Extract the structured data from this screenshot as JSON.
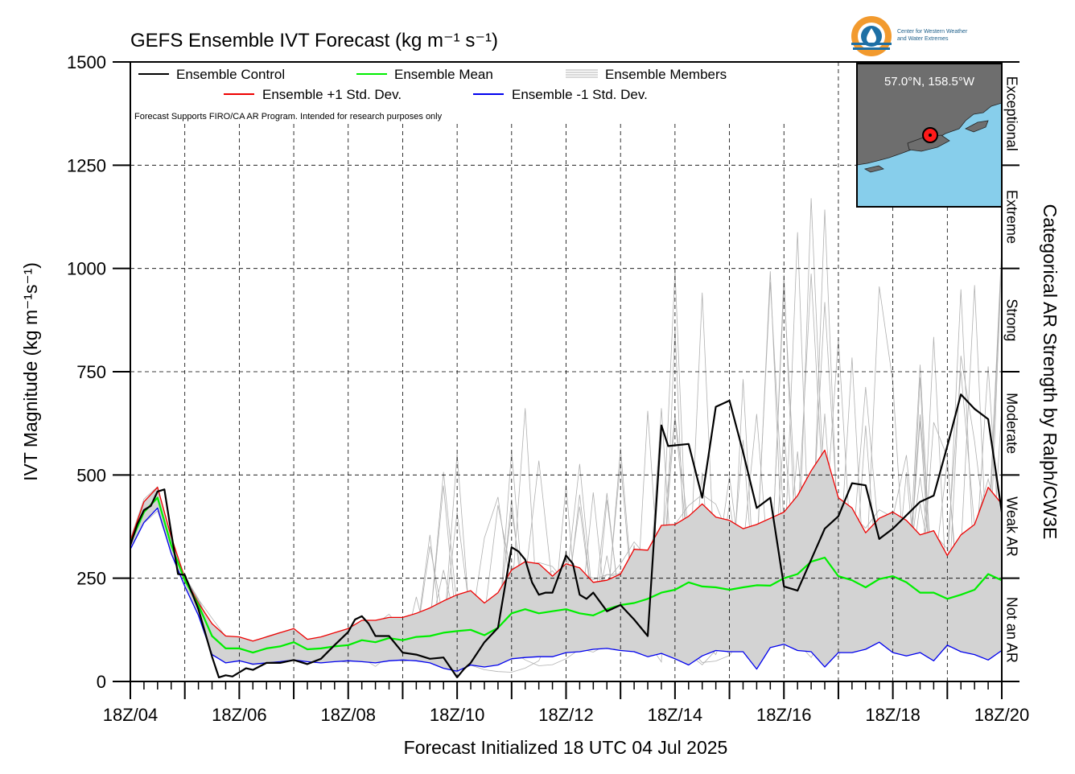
{
  "chart_data": {
    "type": "line",
    "title": "GEFS Ensemble IVT Forecast (kg m⁻¹ s⁻¹)",
    "xlabel": "Forecast Initialized 18 UTC 04 Jul 2025",
    "ylabel": "IVT Magnitude (kg m⁻¹s⁻¹)",
    "right_label": "Categorical AR Strength by Ralph/CW3E",
    "disclaimer": "Forecast Supports FIRO/CA AR Program. Intended for research purposes only",
    "location": "57.0°N, 158.5°W",
    "logo_text": [
      "Center for Western Weather",
      "and Water Extremes"
    ],
    "xlim": [
      0,
      16
    ],
    "ylim": [
      0,
      1500
    ],
    "grid": true,
    "x_unit": "days since 18Z/04 Jul 2025",
    "x_ticks": [
      {
        "x": 0,
        "label": "18Z/04"
      },
      {
        "x": 2,
        "label": "18Z/06"
      },
      {
        "x": 4,
        "label": "18Z/08"
      },
      {
        "x": 6,
        "label": "18Z/10"
      },
      {
        "x": 8,
        "label": "18Z/12"
      },
      {
        "x": 10,
        "label": "18Z/14"
      },
      {
        "x": 12,
        "label": "18Z/16"
      },
      {
        "x": 14,
        "label": "18Z/18"
      },
      {
        "x": 16,
        "label": "18Z/20"
      }
    ],
    "y_ticks": [
      0,
      250,
      500,
      750,
      1000,
      1250,
      1500
    ],
    "categories": [
      {
        "label": "Not an AR",
        "from": 0,
        "to": 250
      },
      {
        "label": "Weak AR",
        "from": 250,
        "to": 500
      },
      {
        "label": "Moderate",
        "from": 500,
        "to": 750
      },
      {
        "label": "Strong",
        "from": 750,
        "to": 1000
      },
      {
        "label": "Extreme",
        "from": 1000,
        "to": 1250
      },
      {
        "label": "Exceptional",
        "from": 1250,
        "to": 1500
      }
    ],
    "legend": [
      {
        "name": "Ensemble Control",
        "color": "#000000"
      },
      {
        "name": "Ensemble Mean",
        "color": "#00ee00"
      },
      {
        "name": "Ensemble Members",
        "color": "#b0b0b0"
      },
      {
        "name": "Ensemble +1 Std. Dev.",
        "color": "#ee0000"
      },
      {
        "name": "Ensemble -1 Std. Dev.",
        "color": "#0000ee"
      }
    ],
    "series": [
      {
        "name": "Ensemble Control",
        "color": "#000000",
        "points": [
          [
            0,
            330
          ],
          [
            0.125,
            380
          ],
          [
            0.25,
            415
          ],
          [
            0.375,
            425
          ],
          [
            0.5,
            460
          ],
          [
            0.625,
            465
          ],
          [
            0.75,
            360
          ],
          [
            0.875,
            260
          ],
          [
            1,
            258
          ],
          [
            1.25,
            175
          ],
          [
            1.5,
            60
          ],
          [
            1.625,
            10
          ],
          [
            1.75,
            15
          ],
          [
            1.875,
            12
          ],
          [
            2,
            22
          ],
          [
            2.125,
            32
          ],
          [
            2.25,
            28
          ],
          [
            2.5,
            45
          ],
          [
            2.75,
            45
          ],
          [
            3,
            52
          ],
          [
            3.25,
            42
          ],
          [
            3.5,
            55
          ],
          [
            3.75,
            88
          ],
          [
            4,
            120
          ],
          [
            4.125,
            150
          ],
          [
            4.25,
            158
          ],
          [
            4.375,
            140
          ],
          [
            4.5,
            110
          ],
          [
            4.75,
            110
          ],
          [
            5,
            70
          ],
          [
            5.25,
            65
          ],
          [
            5.5,
            55
          ],
          [
            5.75,
            58
          ],
          [
            6,
            10
          ],
          [
            6.125,
            30
          ],
          [
            6.25,
            45
          ],
          [
            6.5,
            95
          ],
          [
            6.75,
            130
          ],
          [
            7,
            325
          ],
          [
            7.125,
            315
          ],
          [
            7.25,
            295
          ],
          [
            7.375,
            240
          ],
          [
            7.5,
            210
          ],
          [
            7.625,
            215
          ],
          [
            7.75,
            215
          ],
          [
            8,
            305
          ],
          [
            8.125,
            285
          ],
          [
            8.25,
            210
          ],
          [
            8.375,
            200
          ],
          [
            8.5,
            215
          ],
          [
            8.75,
            170
          ],
          [
            9,
            185
          ],
          [
            9.25,
            150
          ],
          [
            9.5,
            110
          ],
          [
            9.75,
            620
          ],
          [
            9.875,
            570
          ],
          [
            10.25,
            575
          ],
          [
            10.5,
            445
          ],
          [
            10.75,
            665
          ],
          [
            11,
            680
          ],
          [
            11.25,
            555
          ],
          [
            11.5,
            420
          ],
          [
            11.75,
            445
          ],
          [
            12,
            230
          ],
          [
            12.25,
            220
          ],
          [
            12.75,
            370
          ],
          [
            13,
            400
          ],
          [
            13.25,
            480
          ],
          [
            13.5,
            475
          ],
          [
            13.75,
            345
          ],
          [
            14,
            370
          ],
          [
            14.5,
            435
          ],
          [
            14.75,
            450
          ],
          [
            15,
            570
          ],
          [
            15.25,
            695
          ],
          [
            15.5,
            660
          ],
          [
            15.75,
            635
          ],
          [
            16,
            410
          ]
        ]
      },
      {
        "name": "Ensemble Mean",
        "color": "#00ee00",
        "points": [
          [
            0,
            335
          ],
          [
            0.25,
            410
          ],
          [
            0.5,
            445
          ],
          [
            0.75,
            330
          ],
          [
            1,
            245
          ],
          [
            1.25,
            185
          ],
          [
            1.5,
            110
          ],
          [
            1.75,
            80
          ],
          [
            2,
            80
          ],
          [
            2.25,
            70
          ],
          [
            2.5,
            80
          ],
          [
            2.75,
            85
          ],
          [
            3,
            95
          ],
          [
            3.25,
            78
          ],
          [
            3.5,
            80
          ],
          [
            3.75,
            85
          ],
          [
            4,
            88
          ],
          [
            4.25,
            100
          ],
          [
            4.5,
            95
          ],
          [
            4.75,
            105
          ],
          [
            5,
            100
          ],
          [
            5.25,
            108
          ],
          [
            5.5,
            110
          ],
          [
            5.75,
            118
          ],
          [
            6,
            122
          ],
          [
            6.25,
            125
          ],
          [
            6.5,
            112
          ],
          [
            6.75,
            130
          ],
          [
            7,
            165
          ],
          [
            7.25,
            175
          ],
          [
            7.5,
            165
          ],
          [
            7.75,
            170
          ],
          [
            8,
            175
          ],
          [
            8.25,
            165
          ],
          [
            8.5,
            160
          ],
          [
            8.75,
            175
          ],
          [
            9,
            185
          ],
          [
            9.25,
            190
          ],
          [
            9.5,
            200
          ],
          [
            9.75,
            215
          ],
          [
            10,
            222
          ],
          [
            10.25,
            240
          ],
          [
            10.5,
            230
          ],
          [
            10.75,
            228
          ],
          [
            11,
            222
          ],
          [
            11.25,
            228
          ],
          [
            11.5,
            233
          ],
          [
            11.75,
            232
          ],
          [
            12,
            250
          ],
          [
            12.25,
            260
          ],
          [
            12.5,
            290
          ],
          [
            12.75,
            300
          ],
          [
            13,
            255
          ],
          [
            13.25,
            245
          ],
          [
            13.5,
            228
          ],
          [
            13.75,
            248
          ],
          [
            14,
            255
          ],
          [
            14.25,
            240
          ],
          [
            14.5,
            215
          ],
          [
            14.75,
            215
          ],
          [
            15,
            200
          ],
          [
            15.25,
            210
          ],
          [
            15.5,
            222
          ],
          [
            15.75,
            260
          ],
          [
            16,
            245
          ]
        ]
      },
      {
        "name": "Ensemble +1 Std. Dev.",
        "color": "#ee0000",
        "points": [
          [
            0,
            340
          ],
          [
            0.25,
            435
          ],
          [
            0.5,
            470
          ],
          [
            0.75,
            350
          ],
          [
            1,
            250
          ],
          [
            1.25,
            190
          ],
          [
            1.5,
            140
          ],
          [
            1.75,
            110
          ],
          [
            2,
            108
          ],
          [
            2.25,
            98
          ],
          [
            2.5,
            108
          ],
          [
            2.75,
            118
          ],
          [
            3,
            128
          ],
          [
            3.25,
            102
          ],
          [
            3.5,
            108
          ],
          [
            3.75,
            118
          ],
          [
            4,
            128
          ],
          [
            4.25,
            148
          ],
          [
            4.5,
            148
          ],
          [
            4.75,
            155
          ],
          [
            5,
            155
          ],
          [
            5.25,
            165
          ],
          [
            5.5,
            178
          ],
          [
            5.75,
            195
          ],
          [
            6,
            210
          ],
          [
            6.25,
            220
          ],
          [
            6.5,
            190
          ],
          [
            6.75,
            215
          ],
          [
            7,
            270
          ],
          [
            7.25,
            290
          ],
          [
            7.5,
            285
          ],
          [
            7.75,
            255
          ],
          [
            8,
            285
          ],
          [
            8.25,
            275
          ],
          [
            8.5,
            240
          ],
          [
            8.75,
            245
          ],
          [
            9,
            260
          ],
          [
            9.25,
            320
          ],
          [
            9.5,
            318
          ],
          [
            9.75,
            378
          ],
          [
            10,
            380
          ],
          [
            10.25,
            400
          ],
          [
            10.5,
            430
          ],
          [
            10.75,
            398
          ],
          [
            11,
            390
          ],
          [
            11.25,
            370
          ],
          [
            11.5,
            380
          ],
          [
            11.75,
            395
          ],
          [
            12,
            410
          ],
          [
            12.25,
            450
          ],
          [
            12.5,
            510
          ],
          [
            12.75,
            560
          ],
          [
            13,
            445
          ],
          [
            13.25,
            420
          ],
          [
            13.5,
            360
          ],
          [
            13.75,
            395
          ],
          [
            14,
            410
          ],
          [
            14.25,
            390
          ],
          [
            14.5,
            355
          ],
          [
            14.75,
            365
          ],
          [
            15,
            305
          ],
          [
            15.25,
            355
          ],
          [
            15.5,
            380
          ],
          [
            15.75,
            470
          ],
          [
            16,
            430
          ]
        ]
      },
      {
        "name": "Ensemble -1 Std. Dev.",
        "color": "#0000ee",
        "points": [
          [
            0,
            320
          ],
          [
            0.25,
            385
          ],
          [
            0.5,
            420
          ],
          [
            0.75,
            310
          ],
          [
            1,
            230
          ],
          [
            1.25,
            160
          ],
          [
            1.5,
            65
          ],
          [
            1.75,
            45
          ],
          [
            2,
            50
          ],
          [
            2.25,
            42
          ],
          [
            2.5,
            45
          ],
          [
            2.75,
            48
          ],
          [
            3,
            52
          ],
          [
            3.25,
            48
          ],
          [
            3.5,
            45
          ],
          [
            3.75,
            48
          ],
          [
            4,
            50
          ],
          [
            4.25,
            48
          ],
          [
            4.5,
            45
          ],
          [
            4.75,
            50
          ],
          [
            5,
            52
          ],
          [
            5.25,
            50
          ],
          [
            5.5,
            45
          ],
          [
            5.75,
            32
          ],
          [
            6,
            25
          ],
          [
            6.25,
            40
          ],
          [
            6.5,
            35
          ],
          [
            6.75,
            40
          ],
          [
            7,
            55
          ],
          [
            7.25,
            58
          ],
          [
            7.5,
            60
          ],
          [
            7.75,
            60
          ],
          [
            8,
            70
          ],
          [
            8.25,
            72
          ],
          [
            8.5,
            78
          ],
          [
            8.75,
            80
          ],
          [
            9,
            75
          ],
          [
            9.25,
            72
          ],
          [
            9.5,
            60
          ],
          [
            9.75,
            68
          ],
          [
            10,
            55
          ],
          [
            10.25,
            40
          ],
          [
            10.5,
            62
          ],
          [
            10.75,
            75
          ],
          [
            11,
            72
          ],
          [
            11.25,
            72
          ],
          [
            11.5,
            30
          ],
          [
            11.75,
            82
          ],
          [
            12,
            90
          ],
          [
            12.25,
            75
          ],
          [
            12.5,
            72
          ],
          [
            12.75,
            35
          ],
          [
            13,
            70
          ],
          [
            13.25,
            70
          ],
          [
            13.5,
            78
          ],
          [
            13.75,
            95
          ],
          [
            14,
            70
          ],
          [
            14.25,
            62
          ],
          [
            14.5,
            70
          ],
          [
            14.75,
            50
          ],
          [
            15,
            88
          ],
          [
            15.25,
            72
          ],
          [
            15.5,
            65
          ],
          [
            15.75,
            52
          ],
          [
            16,
            75
          ]
        ]
      }
    ]
  }
}
